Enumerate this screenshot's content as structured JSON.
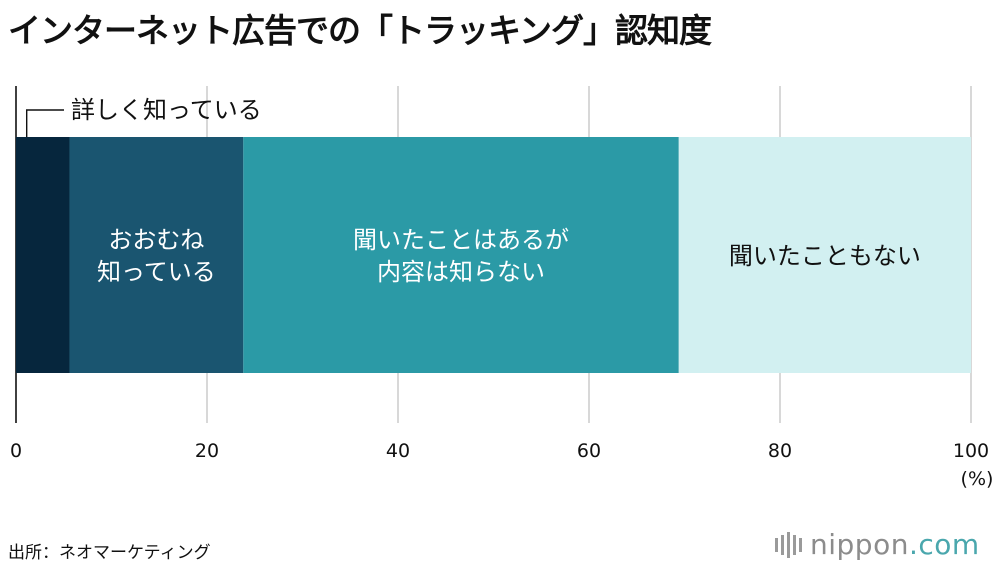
{
  "title": "インターネット広告での「トラッキング」認知度",
  "source": "出所：ネオマーケティング",
  "logo": {
    "name": "nippon",
    "tld": ".com"
  },
  "chart_data": {
    "type": "bar",
    "orientation": "horizontal-stacked",
    "title": "インターネット広告での「トラッキング」認知度",
    "xlim": [
      0,
      100
    ],
    "xticks": [
      0,
      20,
      40,
      60,
      80,
      100
    ],
    "xlabel_unit": "(%)",
    "grid": true,
    "series": [
      {
        "name": "詳しく知っている",
        "value": 5.6,
        "color": "#06263d",
        "label_lines": [
          "詳しく知っている"
        ],
        "label_outside": true,
        "text_color": "#111111"
      },
      {
        "name": "おおむね知っている",
        "value": 18.2,
        "color": "#1a5570",
        "label_lines": [
          "おおむね",
          "知っている"
        ],
        "text_color": "#ffffff"
      },
      {
        "name": "聞いたことはあるが内容は知らない",
        "value": 45.6,
        "color": "#2b9aa6",
        "label_lines": [
          "聞いたことはあるが",
          "内容は知らない"
        ],
        "text_color": "#ffffff"
      },
      {
        "name": "聞いたこともない",
        "value": 30.6,
        "color": "#d2f0f1",
        "label_lines": [
          "聞いたこともない"
        ],
        "text_color": "#111111"
      }
    ]
  }
}
